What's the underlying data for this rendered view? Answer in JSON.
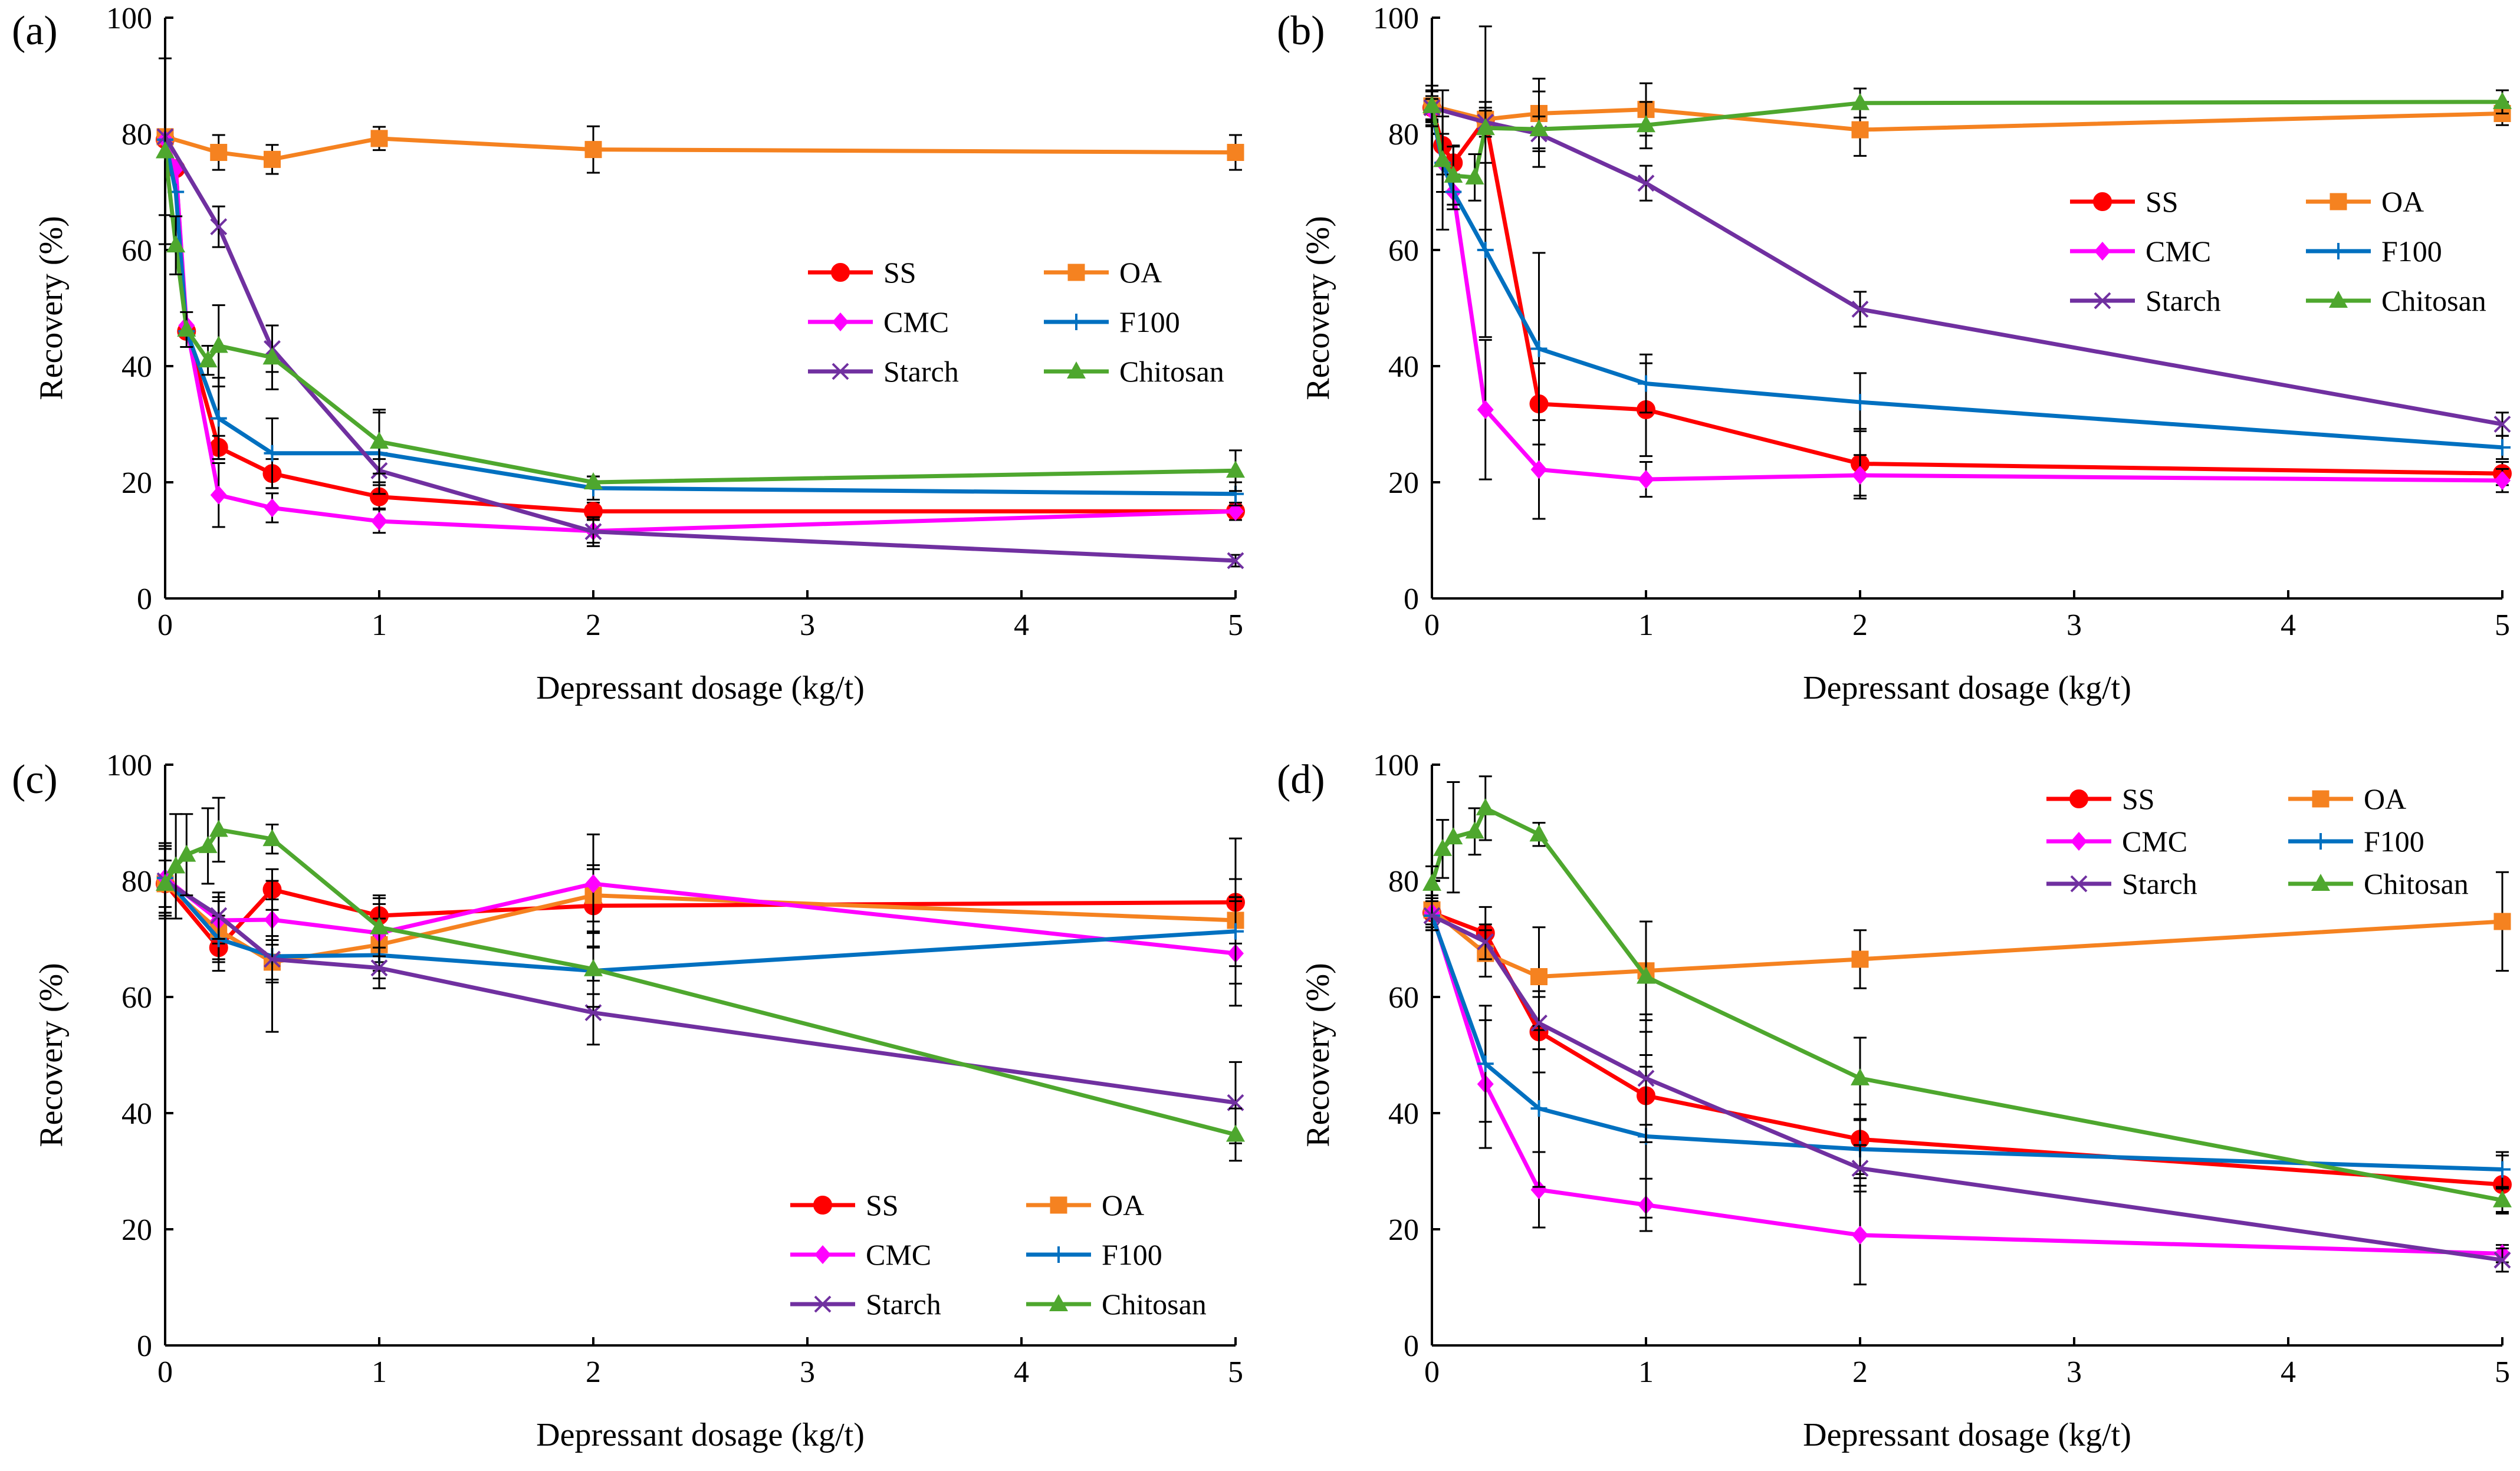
{
  "figure": {
    "series_styles": [
      {
        "name": "SS",
        "color": "#ff0000",
        "marker": "circle"
      },
      {
        "name": "OA",
        "color": "#f58220",
        "marker": "square"
      },
      {
        "name": "CMC",
        "color": "#ff00ff",
        "marker": "diamond"
      },
      {
        "name": "F100",
        "color": "#0070c0",
        "marker": "plus"
      },
      {
        "name": "Starch",
        "color": "#7030a0",
        "marker": "cross"
      },
      {
        "name": "Chitosan",
        "color": "#4ea72e",
        "marker": "triangle"
      }
    ],
    "axis_tick_color": "#000000"
  },
  "chart_data": [
    {
      "panel": "(a)",
      "type": "line",
      "xlabel": "Depressant dosage (kg/t)",
      "ylabel": "Recovery (%)",
      "xlim": [
        0,
        5
      ],
      "ylim": [
        0,
        100
      ],
      "xticks": [
        0,
        1,
        2,
        3,
        4,
        5
      ],
      "yticks": [
        0,
        20,
        40,
        60,
        80,
        100
      ],
      "legend_position": "center-right",
      "series": [
        {
          "name": "SS",
          "x": [
            0,
            0.05,
            0.1,
            0.25,
            0.5,
            1,
            2,
            5
          ],
          "y": [
            79,
            74,
            46,
            26,
            21.5,
            17.5,
            15,
            15
          ],
          "err": [
            0,
            0,
            0,
            2,
            2.5,
            2,
            1.5,
            1.5
          ]
        },
        {
          "name": "OA",
          "x": [
            0,
            0.25,
            0.5,
            1,
            2,
            5
          ],
          "y": [
            79.5,
            76.8,
            75.6,
            79.2,
            77.3,
            76.8
          ],
          "err": [
            0,
            3,
            2.5,
            2,
            4,
            3
          ]
        },
        {
          "name": "CMC",
          "x": [
            0,
            0.05,
            0.1,
            0.25,
            0.5,
            1,
            2,
            5
          ],
          "y": [
            79,
            74,
            47,
            17.8,
            15.6,
            13.3,
            11.6,
            15
          ],
          "err": [
            0,
            0,
            0,
            5.5,
            2.5,
            2,
            2,
            1.5
          ]
        },
        {
          "name": "F100",
          "x": [
            0,
            0.05,
            0.1,
            0.25,
            0.5,
            1,
            2,
            5
          ],
          "y": [
            79,
            70,
            46,
            31,
            25,
            25,
            19,
            18
          ],
          "err": [
            0,
            0,
            0,
            7,
            6,
            7,
            2,
            2
          ]
        },
        {
          "name": "Starch",
          "x": [
            0,
            0.25,
            0.5,
            1,
            2,
            5
          ],
          "y": [
            79.5,
            64,
            43,
            22,
            11.5,
            6.5
          ],
          "err": [
            13.5,
            3.5,
            4,
            2,
            2.5,
            1
          ]
        },
        {
          "name": "Chitosan",
          "x": [
            0,
            0.05,
            0.1,
            0.2,
            0.25,
            0.5,
            1,
            2,
            5
          ],
          "y": [
            77,
            60.8,
            46.3,
            41,
            43.5,
            41.5,
            27,
            20,
            22
          ],
          "err": [
            16,
            5,
            3,
            2.5,
            7,
            5.5,
            5.5,
            1,
            3.5
          ]
        }
      ]
    },
    {
      "panel": "(b)",
      "type": "line",
      "xlabel": "Depressant dosage (kg/t)",
      "ylabel": "Recovery (%)",
      "xlim": [
        0,
        5
      ],
      "ylim": [
        0,
        100
      ],
      "xticks": [
        0,
        1,
        2,
        3,
        4,
        5
      ],
      "yticks": [
        0,
        20,
        40,
        60,
        80,
        100
      ],
      "legend_position": "top-right",
      "series": [
        {
          "name": "SS",
          "x": [
            0,
            0.05,
            0.1,
            0.25,
            0.5,
            1,
            2,
            5
          ],
          "y": [
            84.5,
            78,
            75,
            82.5,
            33.5,
            32.5,
            23.2,
            21.5
          ],
          "err": [
            2,
            5,
            3,
            2,
            7,
            8,
            6,
            2
          ]
        },
        {
          "name": "OA",
          "x": [
            0,
            0.25,
            0.5,
            1,
            2,
            5
          ],
          "y": [
            84.8,
            82.5,
            83.5,
            84.2,
            80.7,
            83.5
          ],
          "err": [
            2.5,
            3,
            6,
            4.5,
            4.5,
            2
          ]
        },
        {
          "name": "CMC",
          "x": [
            0,
            0.05,
            0.1,
            0.25,
            0.5,
            1,
            2,
            5
          ],
          "y": [
            84,
            75,
            70,
            32.5,
            22.2,
            20.5,
            21.2,
            20.3
          ],
          "err": [
            2,
            5,
            3,
            12,
            8.5,
            3,
            3.5,
            2
          ]
        },
        {
          "name": "F100",
          "x": [
            0,
            0.05,
            0.1,
            0.25,
            0.5,
            1,
            2,
            5
          ],
          "y": [
            84,
            75,
            70,
            60,
            43,
            37,
            33.8,
            26
          ],
          "err": [
            2,
            5,
            3,
            15,
            16.5,
            5,
            5,
            2
          ]
        },
        {
          "name": "Starch",
          "x": [
            0,
            0.25,
            0.5,
            1,
            2,
            5
          ],
          "y": [
            84.5,
            82,
            80,
            71.5,
            49.8,
            30
          ],
          "err": [
            3,
            2,
            3,
            3,
            3,
            2
          ]
        },
        {
          "name": "Chitosan",
          "x": [
            0,
            0.05,
            0.1,
            0.2,
            0.25,
            0.5,
            1,
            2,
            5
          ],
          "y": [
            84.8,
            75.5,
            72.8,
            72.5,
            81,
            80.8,
            81.5,
            85.3,
            85.5
          ],
          "err": [
            3.5,
            12,
            5,
            4,
            17.5,
            6.5,
            4,
            2.5,
            2
          ]
        }
      ]
    },
    {
      "panel": "(c)",
      "type": "line",
      "xlabel": "Depressant dosage (kg/t)",
      "ylabel": "Recovery (%)",
      "xlim": [
        0,
        5
      ],
      "ylim": [
        0,
        100
      ],
      "xticks": [
        0,
        1,
        2,
        3,
        4,
        5
      ],
      "yticks": [
        0,
        20,
        40,
        60,
        80,
        100
      ],
      "legend_position": "bottom-right",
      "series": [
        {
          "name": "SS",
          "x": [
            0,
            0.25,
            0.5,
            1,
            2,
            5
          ],
          "y": [
            79.5,
            68.5,
            78.5,
            74,
            75.7,
            76.3
          ],
          "err": [
            6,
            4,
            3.5,
            3.5,
            7,
            11
          ]
        },
        {
          "name": "OA",
          "x": [
            0,
            0.25,
            0.5,
            1,
            2,
            5
          ],
          "y": [
            79.5,
            71.5,
            66,
            69,
            77.5,
            73.2
          ],
          "err": [
            6,
            5,
            3,
            4.5,
            4.5,
            4
          ]
        },
        {
          "name": "CMC",
          "x": [
            0,
            0.25,
            0.5,
            1,
            2,
            5
          ],
          "y": [
            80.5,
            73.2,
            73.3,
            71,
            79.5,
            67.5
          ],
          "err": [
            6,
            4,
            3.5,
            5,
            8.5,
            9
          ]
        },
        {
          "name": "F100",
          "x": [
            0,
            0.25,
            0.5,
            1,
            2,
            5
          ],
          "y": [
            80.5,
            70,
            67,
            67.2,
            64.5,
            71.3
          ],
          "err": [
            6,
            4,
            13,
            4,
            4,
            9
          ]
        },
        {
          "name": "Starch",
          "x": [
            0,
            0.25,
            0.5,
            1,
            2,
            5
          ],
          "y": [
            80,
            74,
            66.5,
            65,
            57.3,
            41.8
          ],
          "err": [
            6,
            4,
            4,
            3.5,
            5.5,
            7
          ]
        },
        {
          "name": "Chitosan",
          "x": [
            0,
            0.05,
            0.1,
            0.2,
            0.25,
            0.5,
            1,
            2,
            5
          ],
          "y": [
            79.5,
            82.5,
            84.5,
            86,
            88.8,
            87.2,
            72,
            64.8,
            36.3
          ],
          "err": [
            4,
            9,
            7,
            6.5,
            5.5,
            2.5,
            5,
            6.5,
            4.5
          ]
        }
      ]
    },
    {
      "panel": "(d)",
      "type": "line",
      "xlabel": "Depressant dosage (kg/t)",
      "ylabel": "Recovery (%)",
      "xlim": [
        0,
        5
      ],
      "ylim": [
        0,
        100
      ],
      "xticks": [
        0,
        1,
        2,
        3,
        4,
        5
      ],
      "yticks": [
        0,
        20,
        40,
        60,
        80,
        100
      ],
      "legend_position": "top-right",
      "series": [
        {
          "name": "SS",
          "x": [
            0,
            0.25,
            0.5,
            1,
            2,
            5
          ],
          "y": [
            74.5,
            71,
            54,
            43,
            35.5,
            27.7
          ],
          "err": [
            2.5,
            4.5,
            7,
            5,
            6,
            5
          ]
        },
        {
          "name": "OA",
          "x": [
            0,
            0.25,
            0.5,
            1,
            2,
            5
          ],
          "y": [
            75,
            67.5,
            63.5,
            64.5,
            66.5,
            73
          ],
          "err": [
            2.5,
            4,
            8.5,
            8.5,
            5,
            8.5
          ]
        },
        {
          "name": "CMC",
          "x": [
            0,
            0.25,
            0.5,
            1,
            2,
            5
          ],
          "y": [
            74.5,
            45,
            26.8,
            24.2,
            19,
            15.8
          ],
          "err": [
            2.5,
            11,
            6.5,
            4.5,
            8.5,
            1.5
          ]
        },
        {
          "name": "F100",
          "x": [
            0,
            0.25,
            0.5,
            1,
            2,
            5
          ],
          "y": [
            74,
            48.5,
            40.8,
            36,
            33.8,
            30.3
          ],
          "err": [
            2.5,
            10,
            13.5,
            14,
            5,
            3
          ]
        },
        {
          "name": "Starch",
          "x": [
            0,
            0.25,
            0.5,
            1,
            2,
            5
          ],
          "y": [
            74,
            69.5,
            55.5,
            46,
            30.5,
            14.7
          ],
          "err": [
            2.5,
            3,
            4.5,
            11,
            4,
            2
          ]
        },
        {
          "name": "Chitosan",
          "x": [
            0,
            0.05,
            0.1,
            0.2,
            0.25,
            0.5,
            1,
            2,
            5
          ],
          "y": [
            79.5,
            85.5,
            87.5,
            88.5,
            92.5,
            88,
            63.5,
            46,
            25
          ],
          "err": [
            3,
            5,
            9.5,
            4,
            5.5,
            2,
            9.5,
            7,
            2
          ]
        }
      ]
    }
  ]
}
